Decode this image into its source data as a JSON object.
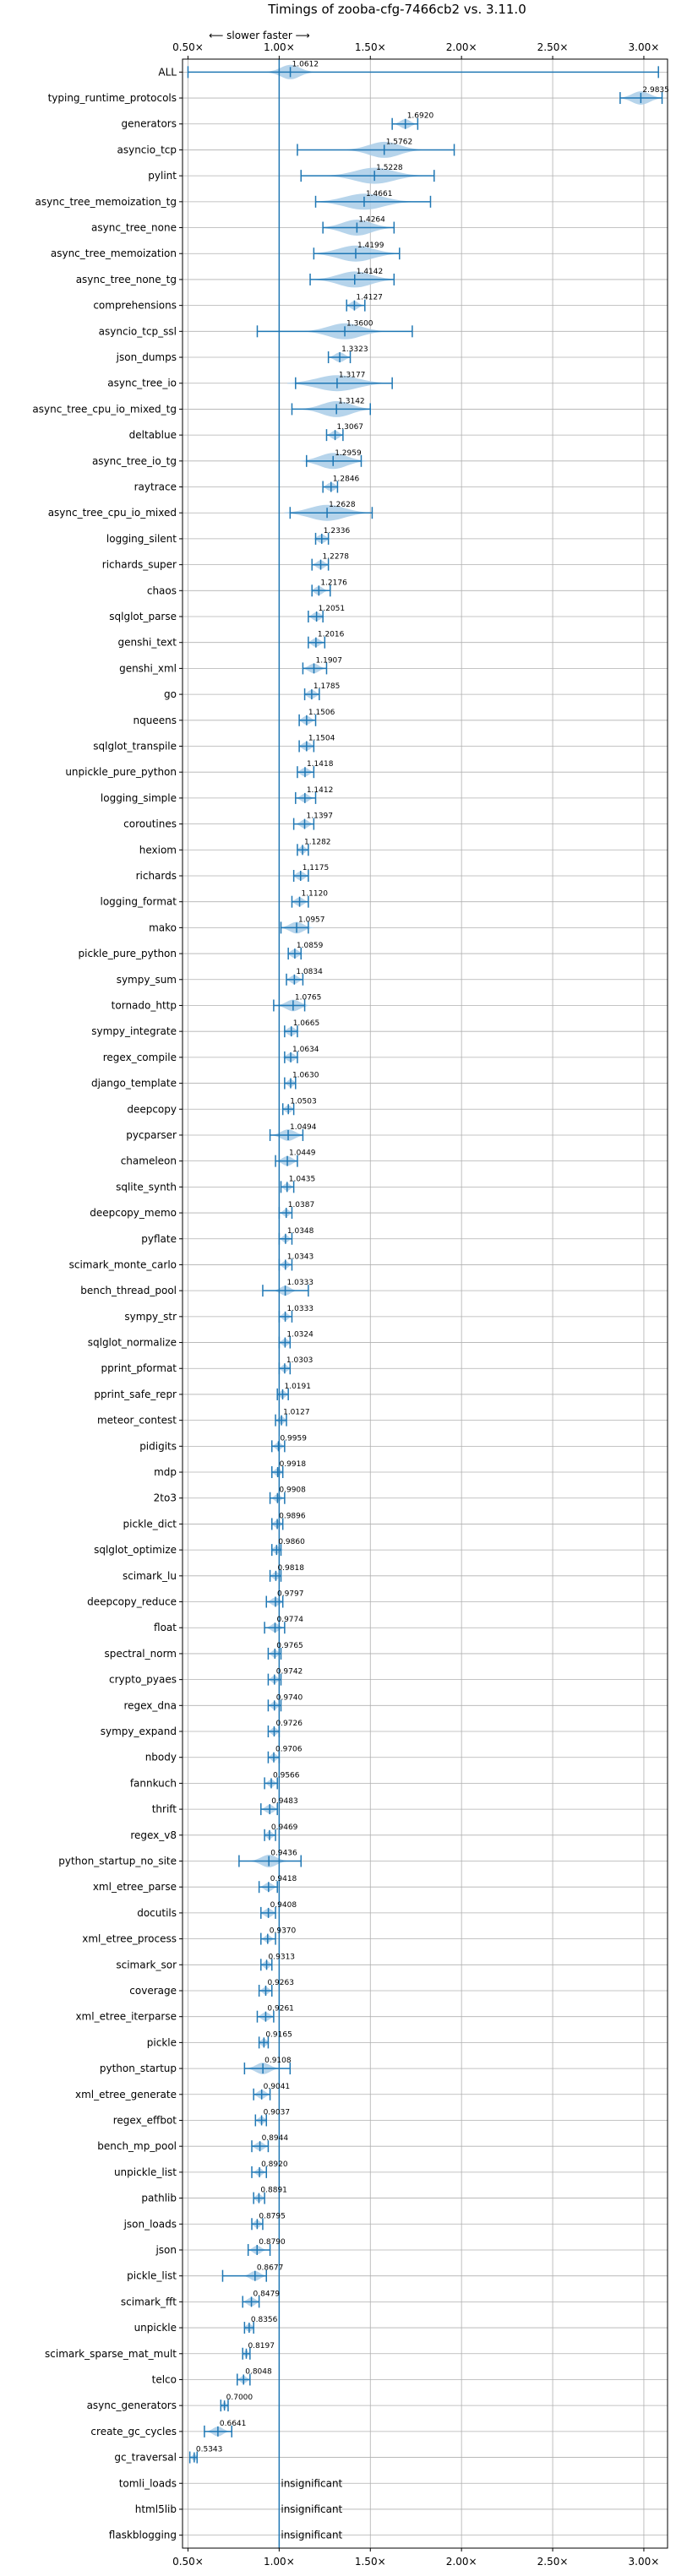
{
  "chart_data": {
    "type": "violin",
    "title": "Timings of zooba-cfg-7466cb2 vs. 3.11.0",
    "direction_label": "⟵ slower   faster ⟶",
    "xlim": [
      0.47,
      3.13
    ],
    "xticks": [
      0.5,
      1.0,
      1.5,
      2.0,
      2.5,
      3.0
    ],
    "xtick_labels": [
      "0.50×",
      "1.00×",
      "1.50×",
      "2.00×",
      "2.50×",
      "3.00×"
    ],
    "reference_line": 1.0,
    "insignificant_label": "insignificant",
    "series": [
      {
        "name": "ALL",
        "value": 1.0612,
        "label": "1.0612",
        "lo": 0.5,
        "hi": 3.08,
        "spread": 0.1,
        "sig": true
      },
      {
        "name": "typing_runtime_protocols",
        "value": 2.9835,
        "label": "2.9835",
        "lo": 2.87,
        "hi": 3.1,
        "spread": 0.09,
        "sig": true
      },
      {
        "name": "generators",
        "value": 1.692,
        "label": "1.6920",
        "lo": 1.62,
        "hi": 1.76,
        "spread": 0.05,
        "sig": true
      },
      {
        "name": "asyncio_tcp",
        "value": 1.5762,
        "label": "1.5762",
        "lo": 1.1,
        "hi": 1.96,
        "spread": 0.16,
        "sig": true
      },
      {
        "name": "pylint",
        "value": 1.5228,
        "label": "1.5228",
        "lo": 1.12,
        "hi": 1.85,
        "spread": 0.2,
        "sig": true
      },
      {
        "name": "async_tree_memoization_tg",
        "value": 1.4661,
        "label": "1.4661",
        "lo": 1.2,
        "hi": 1.83,
        "spread": 0.2,
        "sig": true
      },
      {
        "name": "async_tree_none",
        "value": 1.4264,
        "label": "1.4264",
        "lo": 1.24,
        "hi": 1.63,
        "spread": 0.15,
        "sig": true
      },
      {
        "name": "async_tree_memoization",
        "value": 1.4199,
        "label": "1.4199",
        "lo": 1.19,
        "hi": 1.66,
        "spread": 0.18,
        "sig": true
      },
      {
        "name": "async_tree_none_tg",
        "value": 1.4142,
        "label": "1.4142",
        "lo": 1.17,
        "hi": 1.63,
        "spread": 0.17,
        "sig": true
      },
      {
        "name": "comprehensions",
        "value": 1.4127,
        "label": "1.4127",
        "lo": 1.37,
        "hi": 1.47,
        "spread": 0.04,
        "sig": true
      },
      {
        "name": "asyncio_tcp_ssl",
        "value": 1.36,
        "label": "1.3600",
        "lo": 0.88,
        "hi": 1.73,
        "spread": 0.17,
        "sig": true
      },
      {
        "name": "json_dumps",
        "value": 1.3323,
        "label": "1.3323",
        "lo": 1.27,
        "hi": 1.39,
        "spread": 0.05,
        "sig": true
      },
      {
        "name": "async_tree_io",
        "value": 1.3177,
        "label": "1.3177",
        "lo": 1.09,
        "hi": 1.62,
        "spread": 0.21,
        "sig": true
      },
      {
        "name": "async_tree_cpu_io_mixed_tg",
        "value": 1.3142,
        "label": "1.3142",
        "lo": 1.07,
        "hi": 1.5,
        "spread": 0.15,
        "sig": true
      },
      {
        "name": "deltablue",
        "value": 1.3067,
        "label": "1.3067",
        "lo": 1.26,
        "hi": 1.35,
        "spread": 0.04,
        "sig": true
      },
      {
        "name": "async_tree_io_tg",
        "value": 1.2959,
        "label": "1.2959",
        "lo": 1.15,
        "hi": 1.45,
        "spread": 0.14,
        "sig": true
      },
      {
        "name": "raytrace",
        "value": 1.2846,
        "label": "1.2846",
        "lo": 1.24,
        "hi": 1.32,
        "spread": 0.04,
        "sig": true
      },
      {
        "name": "async_tree_cpu_io_mixed",
        "value": 1.2628,
        "label": "1.2628",
        "lo": 1.06,
        "hi": 1.51,
        "spread": 0.18,
        "sig": true
      },
      {
        "name": "logging_silent",
        "value": 1.2336,
        "label": "1.2336",
        "lo": 1.2,
        "hi": 1.27,
        "spread": 0.04,
        "sig": true
      },
      {
        "name": "richards_super",
        "value": 1.2278,
        "label": "1.2278",
        "lo": 1.18,
        "hi": 1.27,
        "spread": 0.04,
        "sig": true
      },
      {
        "name": "chaos",
        "value": 1.2176,
        "label": "1.2176",
        "lo": 1.18,
        "hi": 1.28,
        "spread": 0.04,
        "sig": true
      },
      {
        "name": "sqlglot_parse",
        "value": 1.2051,
        "label": "1.2051",
        "lo": 1.16,
        "hi": 1.24,
        "spread": 0.04,
        "sig": true
      },
      {
        "name": "genshi_text",
        "value": 1.2016,
        "label": "1.2016",
        "lo": 1.16,
        "hi": 1.25,
        "spread": 0.04,
        "sig": true
      },
      {
        "name": "genshi_xml",
        "value": 1.1907,
        "label": "1.1907",
        "lo": 1.13,
        "hi": 1.26,
        "spread": 0.05,
        "sig": true
      },
      {
        "name": "go",
        "value": 1.1785,
        "label": "1.1785",
        "lo": 1.14,
        "hi": 1.22,
        "spread": 0.04,
        "sig": true
      },
      {
        "name": "nqueens",
        "value": 1.1506,
        "label": "1.1506",
        "lo": 1.11,
        "hi": 1.2,
        "spread": 0.04,
        "sig": true
      },
      {
        "name": "sqlglot_transpile",
        "value": 1.1504,
        "label": "1.1504",
        "lo": 1.11,
        "hi": 1.19,
        "spread": 0.04,
        "sig": true
      },
      {
        "name": "unpickle_pure_python",
        "value": 1.1418,
        "label": "1.1418",
        "lo": 1.1,
        "hi": 1.19,
        "spread": 0.04,
        "sig": true
      },
      {
        "name": "logging_simple",
        "value": 1.1412,
        "label": "1.1412",
        "lo": 1.09,
        "hi": 1.2,
        "spread": 0.04,
        "sig": true
      },
      {
        "name": "coroutines",
        "value": 1.1397,
        "label": "1.1397",
        "lo": 1.08,
        "hi": 1.19,
        "spread": 0.04,
        "sig": true
      },
      {
        "name": "hexiom",
        "value": 1.1282,
        "label": "1.1282",
        "lo": 1.1,
        "hi": 1.16,
        "spread": 0.03,
        "sig": true
      },
      {
        "name": "richards",
        "value": 1.1175,
        "label": "1.1175",
        "lo": 1.08,
        "hi": 1.16,
        "spread": 0.04,
        "sig": true
      },
      {
        "name": "logging_format",
        "value": 1.112,
        "label": "1.1120",
        "lo": 1.07,
        "hi": 1.16,
        "spread": 0.04,
        "sig": true
      },
      {
        "name": "mako",
        "value": 1.0957,
        "label": "1.0957",
        "lo": 1.01,
        "hi": 1.16,
        "spread": 0.07,
        "sig": true
      },
      {
        "name": "pickle_pure_python",
        "value": 1.0859,
        "label": "1.0859",
        "lo": 1.05,
        "hi": 1.12,
        "spread": 0.04,
        "sig": true
      },
      {
        "name": "sympy_sum",
        "value": 1.0834,
        "label": "1.0834",
        "lo": 1.04,
        "hi": 1.13,
        "spread": 0.04,
        "sig": true
      },
      {
        "name": "tornado_http",
        "value": 1.0765,
        "label": "1.0765",
        "lo": 0.97,
        "hi": 1.14,
        "spread": 0.07,
        "sig": true
      },
      {
        "name": "sympy_integrate",
        "value": 1.0665,
        "label": "1.0665",
        "lo": 1.03,
        "hi": 1.1,
        "spread": 0.04,
        "sig": true
      },
      {
        "name": "regex_compile",
        "value": 1.0634,
        "label": "1.0634",
        "lo": 1.03,
        "hi": 1.1,
        "spread": 0.04,
        "sig": true
      },
      {
        "name": "django_template",
        "value": 1.063,
        "label": "1.0630",
        "lo": 1.03,
        "hi": 1.09,
        "spread": 0.03,
        "sig": true
      },
      {
        "name": "deepcopy",
        "value": 1.0503,
        "label": "1.0503",
        "lo": 1.02,
        "hi": 1.08,
        "spread": 0.03,
        "sig": true
      },
      {
        "name": "pycparser",
        "value": 1.0494,
        "label": "1.0494",
        "lo": 0.95,
        "hi": 1.13,
        "spread": 0.07,
        "sig": true
      },
      {
        "name": "chameleon",
        "value": 1.0449,
        "label": "1.0449",
        "lo": 0.98,
        "hi": 1.1,
        "spread": 0.05,
        "sig": true
      },
      {
        "name": "sqlite_synth",
        "value": 1.0435,
        "label": "1.0435",
        "lo": 1.01,
        "hi": 1.08,
        "spread": 0.03,
        "sig": true
      },
      {
        "name": "deepcopy_memo",
        "value": 1.0387,
        "label": "1.0387",
        "lo": 1.0,
        "hi": 1.07,
        "spread": 0.03,
        "sig": true
      },
      {
        "name": "pyflate",
        "value": 1.0348,
        "label": "1.0348",
        "lo": 1.0,
        "hi": 1.07,
        "spread": 0.03,
        "sig": true
      },
      {
        "name": "scimark_monte_carlo",
        "value": 1.0343,
        "label": "1.0343",
        "lo": 1.0,
        "hi": 1.07,
        "spread": 0.03,
        "sig": true
      },
      {
        "name": "bench_thread_pool",
        "value": 1.0333,
        "label": "1.0333",
        "lo": 0.91,
        "hi": 1.16,
        "spread": 0.05,
        "sig": true
      },
      {
        "name": "sympy_str",
        "value": 1.0333,
        "label": "1.0333",
        "lo": 1.0,
        "hi": 1.07,
        "spread": 0.03,
        "sig": true
      },
      {
        "name": "sqlglot_normalize",
        "value": 1.0324,
        "label": "1.0324",
        "lo": 1.0,
        "hi": 1.06,
        "spread": 0.03,
        "sig": true
      },
      {
        "name": "pprint_pformat",
        "value": 1.0303,
        "label": "1.0303",
        "lo": 1.0,
        "hi": 1.06,
        "spread": 0.03,
        "sig": true
      },
      {
        "name": "pprint_safe_repr",
        "value": 1.0191,
        "label": "1.0191",
        "lo": 0.99,
        "hi": 1.05,
        "spread": 0.03,
        "sig": true
      },
      {
        "name": "meteor_contest",
        "value": 1.0127,
        "label": "1.0127",
        "lo": 0.98,
        "hi": 1.04,
        "spread": 0.03,
        "sig": true
      },
      {
        "name": "pidigits",
        "value": 0.9959,
        "label": "0.9959",
        "lo": 0.96,
        "hi": 1.03,
        "spread": 0.03,
        "sig": true
      },
      {
        "name": "mdp",
        "value": 0.9918,
        "label": "0.9918",
        "lo": 0.96,
        "hi": 1.02,
        "spread": 0.03,
        "sig": true
      },
      {
        "name": "2to3",
        "value": 0.9908,
        "label": "0.9908",
        "lo": 0.95,
        "hi": 1.03,
        "spread": 0.03,
        "sig": true
      },
      {
        "name": "pickle_dict",
        "value": 0.9896,
        "label": "0.9896",
        "lo": 0.96,
        "hi": 1.02,
        "spread": 0.03,
        "sig": true
      },
      {
        "name": "sqlglot_optimize",
        "value": 0.986,
        "label": "0.9860",
        "lo": 0.96,
        "hi": 1.01,
        "spread": 0.03,
        "sig": true
      },
      {
        "name": "scimark_lu",
        "value": 0.9818,
        "label": "0.9818",
        "lo": 0.95,
        "hi": 1.01,
        "spread": 0.03,
        "sig": true
      },
      {
        "name": "deepcopy_reduce",
        "value": 0.9797,
        "label": "0.9797",
        "lo": 0.93,
        "hi": 1.02,
        "spread": 0.04,
        "sig": true
      },
      {
        "name": "float",
        "value": 0.9774,
        "label": "0.9774",
        "lo": 0.92,
        "hi": 1.03,
        "spread": 0.04,
        "sig": true
      },
      {
        "name": "spectral_norm",
        "value": 0.9765,
        "label": "0.9765",
        "lo": 0.94,
        "hi": 1.01,
        "spread": 0.03,
        "sig": true
      },
      {
        "name": "crypto_pyaes",
        "value": 0.9742,
        "label": "0.9742",
        "lo": 0.94,
        "hi": 1.01,
        "spread": 0.03,
        "sig": true
      },
      {
        "name": "regex_dna",
        "value": 0.974,
        "label": "0.9740",
        "lo": 0.94,
        "hi": 1.01,
        "spread": 0.03,
        "sig": true
      },
      {
        "name": "sympy_expand",
        "value": 0.9726,
        "label": "0.9726",
        "lo": 0.94,
        "hi": 1.0,
        "spread": 0.03,
        "sig": true
      },
      {
        "name": "nbody",
        "value": 0.9706,
        "label": "0.9706",
        "lo": 0.94,
        "hi": 1.0,
        "spread": 0.03,
        "sig": true
      },
      {
        "name": "fannkuch",
        "value": 0.9566,
        "label": "0.9566",
        "lo": 0.92,
        "hi": 0.99,
        "spread": 0.03,
        "sig": true
      },
      {
        "name": "thrift",
        "value": 0.9483,
        "label": "0.9483",
        "lo": 0.9,
        "hi": 0.99,
        "spread": 0.04,
        "sig": true
      },
      {
        "name": "regex_v8",
        "value": 0.9469,
        "label": "0.9469",
        "lo": 0.92,
        "hi": 0.98,
        "spread": 0.03,
        "sig": true
      },
      {
        "name": "python_startup_no_site",
        "value": 0.9436,
        "label": "0.9436",
        "lo": 0.78,
        "hi": 1.12,
        "spread": 0.08,
        "sig": true
      },
      {
        "name": "xml_etree_parse",
        "value": 0.9418,
        "label": "0.9418",
        "lo": 0.89,
        "hi": 0.99,
        "spread": 0.04,
        "sig": true
      },
      {
        "name": "docutils",
        "value": 0.9408,
        "label": "0.9408",
        "lo": 0.9,
        "hi": 0.98,
        "spread": 0.04,
        "sig": true
      },
      {
        "name": "xml_etree_process",
        "value": 0.937,
        "label": "0.9370",
        "lo": 0.9,
        "hi": 0.98,
        "spread": 0.03,
        "sig": true
      },
      {
        "name": "scimark_sor",
        "value": 0.9313,
        "label": "0.9313",
        "lo": 0.9,
        "hi": 0.96,
        "spread": 0.03,
        "sig": true
      },
      {
        "name": "coverage",
        "value": 0.9263,
        "label": "0.9263",
        "lo": 0.89,
        "hi": 0.96,
        "spread": 0.03,
        "sig": true
      },
      {
        "name": "xml_etree_iterparse",
        "value": 0.9261,
        "label": "0.9261",
        "lo": 0.88,
        "hi": 0.97,
        "spread": 0.04,
        "sig": true
      },
      {
        "name": "pickle",
        "value": 0.9165,
        "label": "0.9165",
        "lo": 0.89,
        "hi": 0.94,
        "spread": 0.03,
        "sig": true
      },
      {
        "name": "python_startup",
        "value": 0.9108,
        "label": "0.9108",
        "lo": 0.81,
        "hi": 1.06,
        "spread": 0.07,
        "sig": true
      },
      {
        "name": "xml_etree_generate",
        "value": 0.9041,
        "label": "0.9041",
        "lo": 0.86,
        "hi": 0.95,
        "spread": 0.04,
        "sig": true
      },
      {
        "name": "regex_effbot",
        "value": 0.9037,
        "label": "0.9037",
        "lo": 0.87,
        "hi": 0.93,
        "spread": 0.03,
        "sig": true
      },
      {
        "name": "bench_mp_pool",
        "value": 0.8944,
        "label": "0.8944",
        "lo": 0.85,
        "hi": 0.94,
        "spread": 0.04,
        "sig": true
      },
      {
        "name": "unpickle_list",
        "value": 0.892,
        "label": "0.8920",
        "lo": 0.85,
        "hi": 0.93,
        "spread": 0.03,
        "sig": true
      },
      {
        "name": "pathlib",
        "value": 0.8891,
        "label": "0.8891",
        "lo": 0.86,
        "hi": 0.92,
        "spread": 0.03,
        "sig": true
      },
      {
        "name": "json_loads",
        "value": 0.8795,
        "label": "0.8795",
        "lo": 0.85,
        "hi": 0.91,
        "spread": 0.03,
        "sig": true
      },
      {
        "name": "json",
        "value": 0.879,
        "label": "0.8790",
        "lo": 0.83,
        "hi": 0.95,
        "spread": 0.04,
        "sig": true
      },
      {
        "name": "pickle_list",
        "value": 0.8677,
        "label": "0.8677",
        "lo": 0.69,
        "hi": 0.93,
        "spread": 0.05,
        "sig": true
      },
      {
        "name": "scimark_fft",
        "value": 0.8479,
        "label": "0.8479",
        "lo": 0.8,
        "hi": 0.89,
        "spread": 0.04,
        "sig": true
      },
      {
        "name": "unpickle",
        "value": 0.8356,
        "label": "0.8356",
        "lo": 0.81,
        "hi": 0.86,
        "spread": 0.03,
        "sig": true
      },
      {
        "name": "scimark_sparse_mat_mult",
        "value": 0.8197,
        "label": "0.8197",
        "lo": 0.8,
        "hi": 0.84,
        "spread": 0.02,
        "sig": true
      },
      {
        "name": "telco",
        "value": 0.8048,
        "label": "0.8048",
        "lo": 0.77,
        "hi": 0.84,
        "spread": 0.03,
        "sig": true
      },
      {
        "name": "async_generators",
        "value": 0.7,
        "label": "0.7000",
        "lo": 0.68,
        "hi": 0.72,
        "spread": 0.02,
        "sig": true
      },
      {
        "name": "create_gc_cycles",
        "value": 0.6641,
        "label": "0.6641",
        "lo": 0.59,
        "hi": 0.74,
        "spread": 0.05,
        "sig": true
      },
      {
        "name": "gc_traversal",
        "value": 0.5343,
        "label": "0.5343",
        "lo": 0.51,
        "hi": 0.55,
        "spread": 0.02,
        "sig": true
      },
      {
        "name": "tomli_loads",
        "value": null,
        "label": "",
        "sig": false
      },
      {
        "name": "html5lib",
        "value": null,
        "label": "",
        "sig": false
      },
      {
        "name": "flaskblogging",
        "value": null,
        "label": "",
        "sig": false
      }
    ],
    "colors": {
      "violin": "#a9cce8",
      "line": "#1f77b4",
      "grid": "#b0b0b0",
      "mean": "#e05050"
    }
  }
}
